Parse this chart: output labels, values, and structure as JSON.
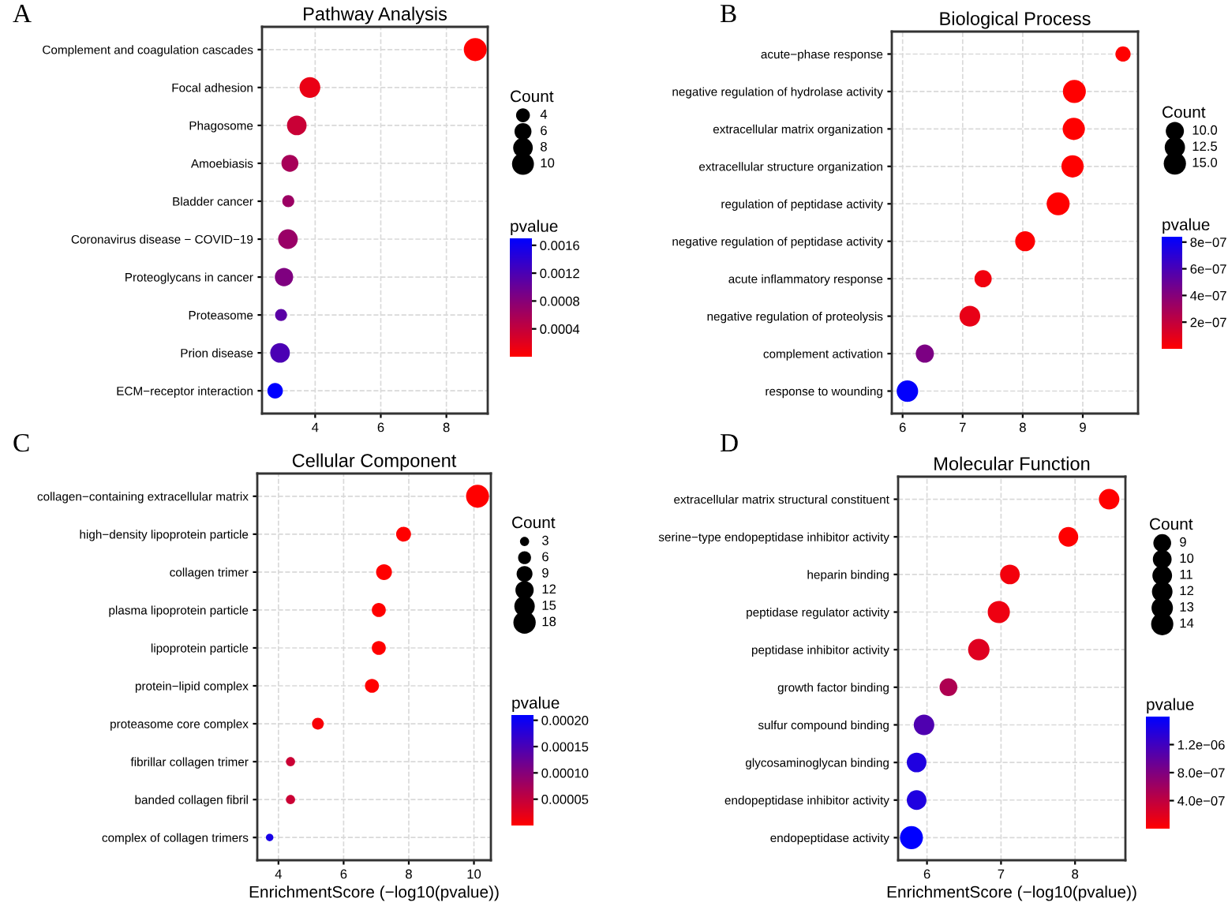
{
  "chart_data": [
    {
      "type": "bubble",
      "orientation": "horizontal",
      "title": "Pathway Analysis",
      "annotations": [
        "A"
      ],
      "legend_title": "Count",
      "clabel": "pvalue",
      "grid": true,
      "categories": [
        "Complement and coagulation cascades",
        "Focal adhesion",
        "Phagosome",
        "Amoebiasis",
        "Bladder cancer",
        "Coronavirus disease − COVID−19",
        "Proteoglycans in cancer",
        "Proteasome",
        "Prion disease",
        "ECM−receptor interaction"
      ],
      "values": [
        8.88,
        3.84,
        3.44,
        3.23,
        3.18,
        3.17,
        3.05,
        2.96,
        2.93,
        2.78
      ],
      "sizes": [
        11,
        9,
        8,
        6,
        3,
        8,
        7,
        3,
        8,
        5
      ],
      "cvalues": [
        1.3e-06,
        0.000145,
        0.00036,
        0.00059,
        0.00066,
        0.00068,
        0.00085,
        0.0011,
        0.0012,
        0.0017
      ],
      "size_legend": [
        4,
        6,
        8,
        10
      ],
      "clim": [
        0,
        0.0017
      ],
      "cticks": [
        {
          "value": 0.0004,
          "label": "0.0004"
        },
        {
          "value": 0.0008,
          "label": "0.0008"
        },
        {
          "value": 0.0012,
          "label": "0.0012"
        },
        {
          "value": 0.0016,
          "label": "0.0016"
        }
      ],
      "xlim": [
        2.38,
        9.26
      ],
      "xticks": [
        4,
        6,
        8
      ]
    },
    {
      "type": "bubble",
      "orientation": "horizontal",
      "title": "Biological Process",
      "annotations": [
        "B"
      ],
      "legend_title": "Count",
      "clabel": "pvalue",
      "grid": true,
      "categories": [
        "acute−phase response",
        "negative regulation of hydrolase activity",
        "extracellular matrix organization",
        "extracellular structure organization",
        "regulation of peptidase activity",
        "negative regulation of peptidase activity",
        "acute inflammatory response",
        "negative regulation of proteolysis",
        "complement activation",
        "response to wounding"
      ],
      "values": [
        9.67,
        8.86,
        8.85,
        8.83,
        8.59,
        8.04,
        7.34,
        7.12,
        6.37,
        6.08
      ],
      "sizes": [
        7,
        16,
        15,
        15,
        16,
        12,
        9,
        13,
        10,
        14
      ],
      "cvalues": [
        2.1e-10,
        1.4e-09,
        1.4e-09,
        1.5e-09,
        2.6e-09,
        9.1e-09,
        4.6e-08,
        7.6e-08,
        4.3e-07,
        8.3e-07
      ],
      "size_legend": [
        {
          "value": 10,
          "label": "10.0"
        },
        {
          "value": 12.5,
          "label": "12.5"
        },
        {
          "value": 15,
          "label": "15.0"
        }
      ],
      "clim": [
        0,
        8.4e-07
      ],
      "cticks": [
        {
          "value": 2e-07,
          "label": "2e−07"
        },
        {
          "value": 4e-07,
          "label": "4e−07"
        },
        {
          "value": 6e-07,
          "label": "6e−07"
        },
        {
          "value": 8e-07,
          "label": "8e−07"
        }
      ],
      "xlim": [
        5.82,
        9.92
      ],
      "xticks": [
        6,
        7,
        8,
        9
      ]
    },
    {
      "type": "bubble",
      "orientation": "horizontal",
      "title": "Cellular Component",
      "annotations": [
        "C"
      ],
      "legend_title": "Count",
      "clabel": "pvalue",
      "grid": true,
      "xlabel": "EnrichmentScore (−log10(pvalue))",
      "categories": [
        "collagen−containing extracellular matrix",
        "high−density lipoprotein particle",
        "collagen trimer",
        "plasma lipoprotein particle",
        "lipoprotein particle",
        "protein−lipid complex",
        "proteasome core complex",
        "fibrillar collagen trimer",
        "banded collagen fibril",
        "complex of collagen trimers"
      ],
      "values": [
        10.11,
        7.84,
        7.24,
        7.08,
        7.08,
        6.87,
        5.21,
        4.37,
        4.37,
        3.73
      ],
      "sizes": [
        19,
        8,
        9,
        7,
        7,
        7,
        5,
        3,
        3,
        2
      ],
      "cvalues": [
        7.8e-11,
        1.4e-08,
        5.8e-08,
        8.3e-08,
        8.3e-08,
        1.3e-07,
        6.2e-06,
        4.3e-05,
        4.3e-05,
        0.00019
      ],
      "size_legend": [
        3,
        6,
        9,
        12,
        15,
        18
      ],
      "clim": [
        0,
        0.00021
      ],
      "cticks": [
        {
          "value": 5e-05,
          "label": "0.00005"
        },
        {
          "value": 0.0001,
          "label": "0.00010"
        },
        {
          "value": 0.00015,
          "label": "0.00015"
        },
        {
          "value": 0.0002,
          "label": "0.00020"
        }
      ],
      "xlim": [
        3.35,
        10.52
      ],
      "xticks": [
        4,
        6,
        8,
        10
      ]
    },
    {
      "type": "bubble",
      "orientation": "horizontal",
      "title": "Molecular Function",
      "annotations": [
        "D"
      ],
      "legend_title": "Count",
      "clabel": "pvalue",
      "grid": true,
      "xlabel": "EnrichmentScore (−log10(pvalue))",
      "categories": [
        "extracellular matrix structural constituent",
        "serine−type endopeptidase inhibitor activity",
        "heparin binding",
        "peptidase regulator activity",
        "peptidase inhibitor activity",
        "growth factor binding",
        "sulfur compound binding",
        "glycosaminoglycan binding",
        "endopeptidase inhibitor activity",
        "endopeptidase activity"
      ],
      "values": [
        8.46,
        7.91,
        7.12,
        6.97,
        6.7,
        6.29,
        5.96,
        5.86,
        5.86,
        5.79
      ],
      "sizes": [
        12,
        11,
        11,
        14,
        13,
        9,
        12,
        11,
        11,
        15
      ],
      "cvalues": [
        3.5e-09,
        1.2e-08,
        7.6e-08,
        1.1e-07,
        2e-07,
        5.1e-07,
        1.1e-06,
        1.4e-06,
        1.4e-06,
        1.6e-06
      ],
      "size_legend": [
        9,
        10,
        11,
        12,
        13,
        14
      ],
      "clim": [
        0,
        1.6e-06
      ],
      "cticks": [
        {
          "value": 4e-07,
          "label": "4.0e−07"
        },
        {
          "value": 8e-07,
          "label": "8.0e−07"
        },
        {
          "value": 1.2e-06,
          "label": "1.2e−06"
        }
      ],
      "xlim": [
        5.61,
        8.68
      ],
      "xticks": [
        6,
        7,
        8
      ]
    }
  ]
}
